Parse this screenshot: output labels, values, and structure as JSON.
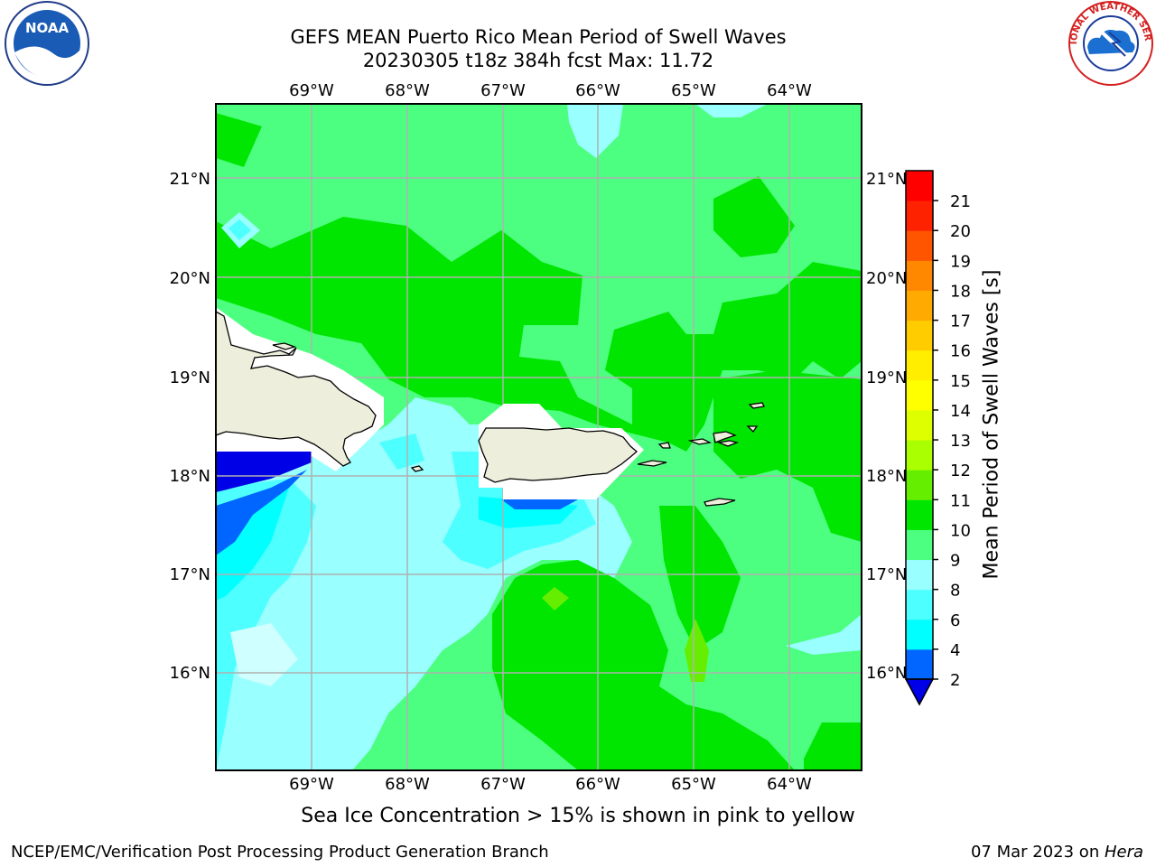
{
  "title": {
    "line1": "GEFS MEAN Puerto Rico Mean Period of Swell Waves",
    "line2": "20230305 t18z 384h fcst   Max: 11.72"
  },
  "map": {
    "lon_labels": [
      "69°W",
      "68°W",
      "67°W",
      "66°W",
      "65°W",
      "64°W"
    ],
    "lat_labels": [
      "21°N",
      "20°N",
      "19°N",
      "18°N",
      "17°N",
      "16°N"
    ],
    "extent": {
      "lon_min": -70.0,
      "lon_max": -63.25,
      "lat_min": 15.0,
      "lat_max": 21.75
    },
    "gridlines": true,
    "colors": {
      "ocean_9_10": "#4dff80",
      "ocean_10_11": "#00e600",
      "ocean_8_9": "#99ffff",
      "ocean_6_8": "#4dffff",
      "ocean_4_6": "#00ffff",
      "ocean_2_4": "#0066ff",
      "ocean_lt2": "#0000e6",
      "land": "#eeeedd",
      "coast": "#000000"
    }
  },
  "colorbar": {
    "label": "Mean Period of Swell Waves [s]",
    "ticks": [
      "2",
      "4",
      "6",
      "8",
      "9",
      "10",
      "11",
      "12",
      "13",
      "14",
      "15",
      "16",
      "17",
      "18",
      "19",
      "20",
      "21"
    ],
    "bands": [
      "#0066ff",
      "#00ffff",
      "#4dffff",
      "#99ffff",
      "#4dff80",
      "#00e600",
      "#66ee00",
      "#aaff00",
      "#ddff00",
      "#ffff00",
      "#ffee00",
      "#ffcc00",
      "#ffaa00",
      "#ff8800",
      "#ff5500",
      "#ff2200",
      "#ff0000"
    ],
    "under_color": "#0000e6"
  },
  "ice_note": "Sea Ice Concentration > 15% is shown in pink to yellow",
  "credit_left": "NCEP/EMC/Verification Post Processing Product Generation Branch",
  "credit_right_date": "07 Mar 2023 on ",
  "credit_right_host": "Hera",
  "logos": {
    "left": "NOAA",
    "right": "NATIONAL WEATHER SERVICE"
  }
}
